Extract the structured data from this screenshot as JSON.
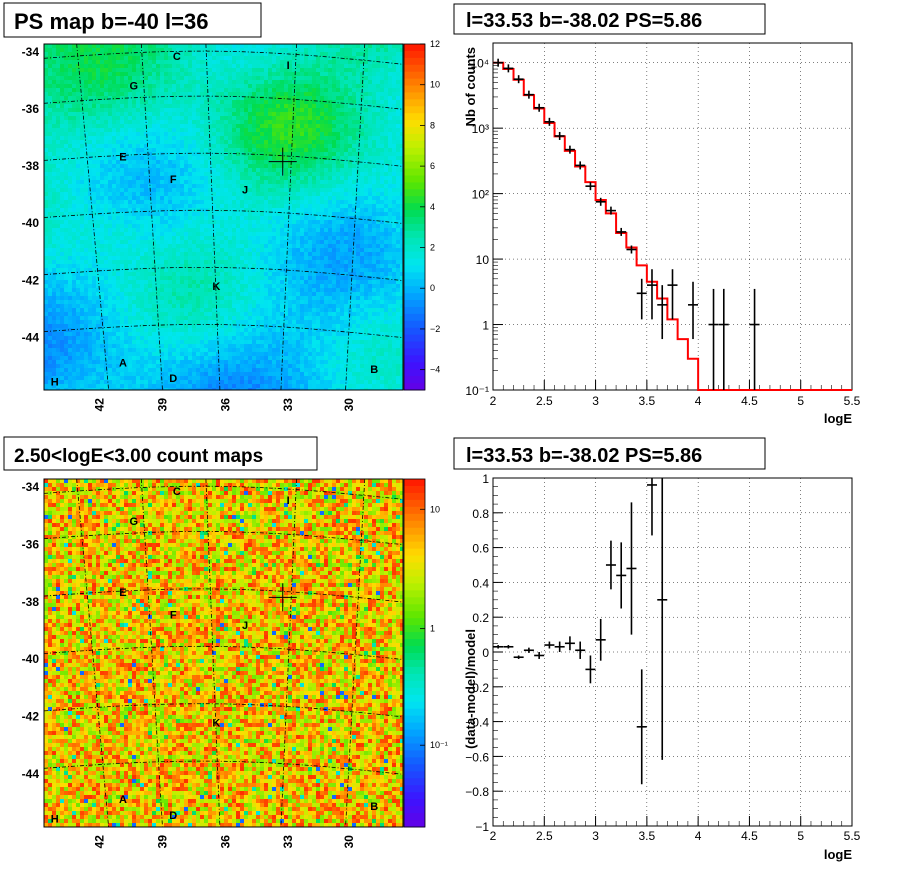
{
  "panels": {
    "top_left": {
      "title": "PS map b=-40 l=36"
    },
    "bottom_left": {
      "title": "2.50<logE<3.00 count maps"
    },
    "top_right": {
      "title": "l=33.53 b=-38.02 PS=5.86"
    },
    "bottom_right": {
      "title": "l=33.53 b=-38.02 PS=5.86"
    }
  },
  "colors": {
    "model_line": "#ff0000",
    "data_points": "#000000",
    "grid": "#000000"
  },
  "chart_data": [
    {
      "type": "heatmap",
      "title": "PS map b=-40 l=36",
      "x_ticks": [
        "42",
        "39",
        "36",
        "33",
        "30"
      ],
      "y_ticks": [
        "-34",
        "-36",
        "-38",
        "-40",
        "-42",
        "-44"
      ],
      "colorbar_ticks": [
        "12",
        "10",
        "8",
        "6",
        "4",
        "2",
        "0",
        "−2",
        "−4"
      ],
      "colorbar_range": [
        -5,
        12
      ],
      "source_labels": [
        "C",
        "I",
        "G",
        "E",
        "F",
        "J",
        "K",
        "A",
        "D",
        "B",
        "H"
      ]
    },
    {
      "type": "line",
      "title": "l=33.53 b=-38.02 PS=5.86",
      "xlabel": "logE",
      "ylabel": "Nb of counts",
      "xlim": [
        2,
        5.5
      ],
      "ylim": [
        0.1,
        20000
      ],
      "log_y": true,
      "grid": true,
      "x_ticks": [
        "2",
        "2.5",
        "3",
        "3.5",
        "4",
        "4.5",
        "5",
        "5.5"
      ],
      "y_ticks": [
        "10⁻¹",
        "1",
        "10",
        "10²",
        "10³",
        "10⁴"
      ],
      "series": [
        {
          "style": "step",
          "bin_width": 0.1,
          "x": [
            2.0,
            2.1,
            2.2,
            2.3,
            2.4,
            2.5,
            2.6,
            2.7,
            2.8,
            2.9,
            3.0,
            3.1,
            3.2,
            3.3,
            3.4,
            3.5,
            3.6,
            3.7,
            3.8,
            3.9,
            4.0,
            4.1,
            4.2,
            4.3,
            4.4,
            4.5,
            4.6,
            4.7,
            4.8,
            4.9,
            5.0,
            5.1,
            5.2,
            5.3,
            5.4
          ],
          "values": [
            10000,
            8000,
            5500,
            3200,
            2000,
            1200,
            750,
            450,
            260,
            150,
            80,
            50,
            25,
            15,
            8,
            4.5,
            2.5,
            1.2,
            0.6,
            0.3,
            0.1,
            0.1,
            0.1,
            0.1,
            0.1,
            0.1,
            0.1,
            0.1,
            0.1,
            0.1,
            0.1,
            0.1,
            0.1,
            0.1,
            0.1
          ]
        },
        {
          "style": "errorbar",
          "x": [
            2.05,
            2.15,
            2.25,
            2.35,
            2.45,
            2.55,
            2.65,
            2.75,
            2.85,
            2.95,
            3.05,
            3.15,
            3.25,
            3.35,
            3.45,
            3.55,
            3.65,
            3.75,
            3.95,
            4.15,
            4.25,
            4.55
          ],
          "values": [
            10000,
            8200,
            5600,
            3250,
            2050,
            1250,
            760,
            470,
            270,
            130,
            75,
            55,
            26,
            14,
            3,
            4,
            2,
            4,
            2,
            1,
            1,
            1
          ],
          "err_low": [
            0,
            0,
            0,
            0,
            0,
            0,
            0,
            0,
            0,
            0,
            0,
            0,
            0,
            0,
            1.8,
            2.8,
            1.4,
            2.8,
            1.4,
            0.9,
            0.9,
            0.9
          ],
          "err_high": [
            0,
            0,
            0,
            0,
            0,
            0,
            0,
            0,
            0,
            0,
            0,
            0,
            0,
            0,
            2,
            3,
            2,
            3,
            2.5,
            2.5,
            2.5,
            2.5
          ]
        }
      ]
    },
    {
      "type": "heatmap",
      "title": "2.50<logE<3.00 count maps",
      "x_ticks": [
        "42",
        "39",
        "36",
        "33",
        "30"
      ],
      "y_ticks": [
        "-34",
        "-36",
        "-38",
        "-40",
        "-42",
        "-44"
      ],
      "colorbar_ticks": [
        "10",
        "1",
        "10⁻¹"
      ],
      "log_scale": true,
      "source_labels": [
        "C",
        "I",
        "G",
        "E",
        "F",
        "J",
        "K",
        "A",
        "D",
        "B",
        "H"
      ]
    },
    {
      "type": "scatter",
      "title": "l=33.53 b=-38.02 PS=5.86",
      "xlabel": "logE",
      "ylabel": "(data-model)/model",
      "xlim": [
        2,
        5.5
      ],
      "ylim": [
        -1,
        1
      ],
      "grid": true,
      "x_ticks": [
        "2",
        "2.5",
        "3",
        "3.5",
        "4",
        "4.5",
        "5",
        "5.5"
      ],
      "y_ticks": [
        "1",
        "0.8",
        "0.6",
        "0.4",
        "0.2",
        "0",
        "−0.2",
        "−0.4",
        "−0.6",
        "−0.8",
        "−1"
      ],
      "x": [
        2.05,
        2.15,
        2.25,
        2.35,
        2.45,
        2.55,
        2.65,
        2.75,
        2.85,
        2.95,
        3.05,
        3.15,
        3.25,
        3.35,
        3.45,
        3.55,
        3.65
      ],
      "values": [
        0.03,
        0.03,
        -0.03,
        0.01,
        -0.02,
        0.04,
        0.03,
        0.05,
        0.01,
        -0.1,
        0.07,
        0.5,
        0.44,
        0.48,
        -0.43,
        0.96,
        0.3
      ],
      "err": [
        0.01,
        0.01,
        0.01,
        0.015,
        0.02,
        0.02,
        0.03,
        0.04,
        0.05,
        0.08,
        0.12,
        0.14,
        0.19,
        0.38,
        0.33,
        0.29,
        0.92
      ]
    }
  ]
}
